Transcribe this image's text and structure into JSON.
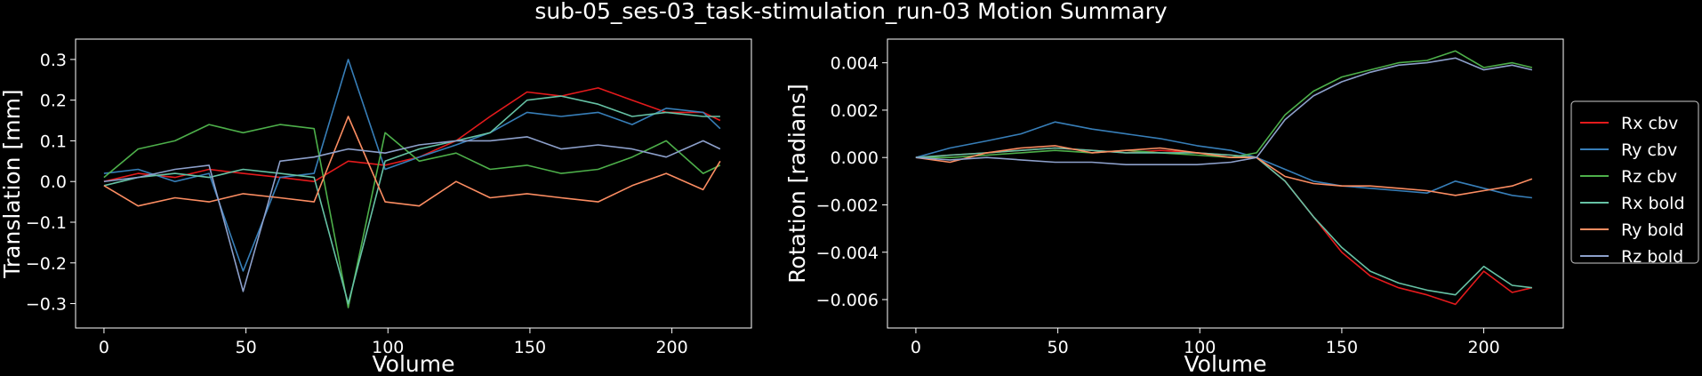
{
  "figure_title": "sub-05_ses-03_task-stimulation_run-03 Motion Summary",
  "chart_data": [
    {
      "type": "line",
      "xlabel": "Volume",
      "ylabel": "Translation [mm]",
      "xlim": [
        -10,
        228
      ],
      "ylim": [
        -0.36,
        0.35
      ],
      "xticks": [
        0,
        50,
        100,
        150,
        200
      ],
      "yticks": [
        -0.3,
        -0.2,
        -0.1,
        0.0,
        0.1,
        0.2,
        0.3
      ],
      "ytick_labels": [
        "−0.3",
        "−0.2",
        "−0.1",
        "0.0",
        "0.1",
        "0.2",
        "0.3"
      ],
      "grid": false,
      "series": [
        {
          "key": "Tx cbv",
          "color": "#e41a1c",
          "x": [
            0,
            12,
            25,
            37,
            49,
            62,
            74,
            86,
            99,
            111,
            124,
            136,
            149,
            161,
            174,
            186,
            198,
            211,
            217
          ],
          "y": [
            0.0,
            0.02,
            0.01,
            0.03,
            0.02,
            0.01,
            0.0,
            0.05,
            0.04,
            0.06,
            0.1,
            0.16,
            0.22,
            0.21,
            0.23,
            0.2,
            0.17,
            0.17,
            0.15
          ]
        },
        {
          "key": "Ty cbv",
          "color": "#377eb8",
          "x": [
            0,
            12,
            25,
            37,
            49,
            62,
            74,
            86,
            99,
            111,
            124,
            136,
            149,
            161,
            174,
            186,
            198,
            211,
            217
          ],
          "y": [
            0.02,
            0.03,
            0.0,
            0.02,
            -0.22,
            0.01,
            0.02,
            0.3,
            0.03,
            0.06,
            0.09,
            0.12,
            0.17,
            0.16,
            0.17,
            0.14,
            0.18,
            0.17,
            0.13
          ]
        },
        {
          "key": "Tz cbv",
          "color": "#4daf4a",
          "x": [
            0,
            12,
            25,
            37,
            49,
            62,
            74,
            86,
            99,
            111,
            124,
            136,
            149,
            161,
            174,
            186,
            198,
            211,
            217
          ],
          "y": [
            0.01,
            0.08,
            0.1,
            0.14,
            0.12,
            0.14,
            0.13,
            -0.31,
            0.12,
            0.05,
            0.07,
            0.03,
            0.04,
            0.02,
            0.03,
            0.06,
            0.1,
            0.02,
            0.04
          ]
        },
        {
          "key": "Tx bold",
          "color": "#66c2a5",
          "x": [
            0,
            12,
            25,
            37,
            49,
            62,
            74,
            86,
            99,
            111,
            124,
            136,
            149,
            161,
            174,
            186,
            198,
            211,
            217
          ],
          "y": [
            -0.01,
            0.01,
            0.02,
            0.01,
            0.03,
            0.02,
            0.01,
            -0.3,
            0.05,
            0.08,
            0.1,
            0.12,
            0.2,
            0.21,
            0.19,
            0.16,
            0.17,
            0.16,
            0.16
          ]
        },
        {
          "key": "Ty bold",
          "color": "#fc8d62",
          "x": [
            0,
            12,
            25,
            37,
            49,
            62,
            74,
            86,
            99,
            111,
            124,
            136,
            149,
            161,
            174,
            186,
            198,
            211,
            217
          ],
          "y": [
            -0.01,
            -0.06,
            -0.04,
            -0.05,
            -0.03,
            -0.04,
            -0.05,
            0.16,
            -0.05,
            -0.06,
            0.0,
            -0.04,
            -0.03,
            -0.04,
            -0.05,
            -0.01,
            0.02,
            -0.02,
            0.05
          ]
        },
        {
          "key": "Tz bold",
          "color": "#8da0cb",
          "x": [
            0,
            12,
            25,
            37,
            49,
            62,
            74,
            86,
            99,
            111,
            124,
            136,
            149,
            161,
            174,
            186,
            198,
            211,
            217
          ],
          "y": [
            0.0,
            0.01,
            0.03,
            0.04,
            -0.27,
            0.05,
            0.06,
            0.08,
            0.07,
            0.09,
            0.1,
            0.1,
            0.11,
            0.08,
            0.09,
            0.08,
            0.06,
            0.1,
            0.08
          ]
        }
      ]
    },
    {
      "type": "line",
      "xlabel": "Volume",
      "ylabel": "Rotation [radians]",
      "xlim": [
        -10,
        228
      ],
      "ylim": [
        -0.0072,
        0.005
      ],
      "xticks": [
        0,
        50,
        100,
        150,
        200
      ],
      "yticks": [
        -0.006,
        -0.004,
        -0.002,
        0.0,
        0.002,
        0.004
      ],
      "ytick_labels": [
        "−0.006",
        "−0.004",
        "−0.002",
        "0.000",
        "0.002",
        "0.004"
      ],
      "grid": false,
      "legend_position": "right",
      "series": [
        {
          "name": "Rx cbv",
          "color": "#e41a1c",
          "x": [
            0,
            12,
            25,
            37,
            49,
            62,
            74,
            86,
            99,
            111,
            120,
            130,
            140,
            150,
            160,
            170,
            180,
            190,
            200,
            210,
            217
          ],
          "y": [
            0.0,
            0.0001,
            0.0002,
            0.0003,
            0.0004,
            0.0003,
            0.0002,
            0.0003,
            0.0002,
            0.0001,
            0.0,
            -0.001,
            -0.0025,
            -0.004,
            -0.005,
            -0.0055,
            -0.0058,
            -0.0062,
            -0.0048,
            -0.0057,
            -0.0055
          ]
        },
        {
          "name": "Ry cbv",
          "color": "#377eb8",
          "x": [
            0,
            12,
            25,
            37,
            49,
            62,
            74,
            86,
            99,
            111,
            120,
            130,
            140,
            150,
            160,
            170,
            180,
            190,
            200,
            210,
            217
          ],
          "y": [
            0.0,
            0.0004,
            0.0007,
            0.001,
            0.0015,
            0.0012,
            0.001,
            0.0008,
            0.0005,
            0.0003,
            0.0,
            -0.0005,
            -0.001,
            -0.0012,
            -0.0013,
            -0.0014,
            -0.0015,
            -0.001,
            -0.0013,
            -0.0016,
            -0.0017
          ]
        },
        {
          "name": "Rz cbv",
          "color": "#4daf4a",
          "x": [
            0,
            12,
            25,
            37,
            49,
            62,
            74,
            86,
            99,
            111,
            120,
            130,
            140,
            150,
            160,
            170,
            180,
            190,
            200,
            210,
            217
          ],
          "y": [
            0.0,
            0.0,
            0.0001,
            0.0002,
            0.0003,
            0.0002,
            0.0003,
            0.0002,
            0.0001,
            0.0,
            0.0002,
            0.0018,
            0.0028,
            0.0034,
            0.0037,
            0.004,
            0.0041,
            0.0045,
            0.0038,
            0.004,
            0.0038
          ]
        },
        {
          "name": "Rx bold",
          "color": "#66c2a5",
          "x": [
            0,
            12,
            25,
            37,
            49,
            62,
            74,
            86,
            99,
            111,
            120,
            130,
            140,
            150,
            160,
            170,
            180,
            190,
            200,
            210,
            217
          ],
          "y": [
            0.0,
            0.0001,
            0.0002,
            0.0003,
            0.0004,
            0.0003,
            0.0002,
            0.0002,
            0.0002,
            0.0001,
            0.0,
            -0.001,
            -0.0025,
            -0.0038,
            -0.0048,
            -0.0053,
            -0.0056,
            -0.0058,
            -0.0046,
            -0.0054,
            -0.0055
          ]
        },
        {
          "name": "Ry bold",
          "color": "#fc8d62",
          "x": [
            0,
            12,
            25,
            37,
            49,
            62,
            74,
            86,
            99,
            111,
            120,
            130,
            140,
            150,
            160,
            170,
            180,
            190,
            200,
            210,
            217
          ],
          "y": [
            0.0,
            -0.0002,
            0.0002,
            0.0004,
            0.0005,
            0.0002,
            0.0003,
            0.0004,
            0.0002,
            0.0,
            0.0,
            -0.0008,
            -0.0011,
            -0.0012,
            -0.0012,
            -0.0013,
            -0.0014,
            -0.0016,
            -0.0014,
            -0.0012,
            -0.0009
          ]
        },
        {
          "name": "Rz bold",
          "color": "#8da0cb",
          "x": [
            0,
            12,
            25,
            37,
            49,
            62,
            74,
            86,
            99,
            111,
            120,
            130,
            140,
            150,
            160,
            170,
            180,
            190,
            200,
            210,
            217
          ],
          "y": [
            0.0,
            -0.0001,
            0.0,
            -0.0001,
            -0.0002,
            -0.0002,
            -0.0003,
            -0.0003,
            -0.0003,
            -0.0002,
            0.0,
            0.0016,
            0.0026,
            0.0032,
            0.0036,
            0.0039,
            0.004,
            0.0042,
            0.0037,
            0.0039,
            0.0037
          ]
        }
      ]
    }
  ]
}
